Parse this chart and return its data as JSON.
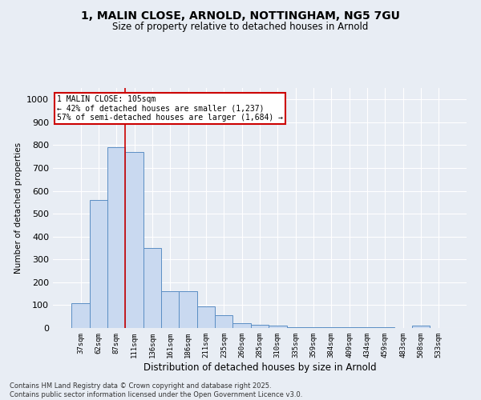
{
  "title_line1": "1, MALIN CLOSE, ARNOLD, NOTTINGHAM, NG5 7GU",
  "title_line2": "Size of property relative to detached houses in Arnold",
  "xlabel": "Distribution of detached houses by size in Arnold",
  "ylabel": "Number of detached properties",
  "categories": [
    "37sqm",
    "62sqm",
    "87sqm",
    "111sqm",
    "136sqm",
    "161sqm",
    "186sqm",
    "211sqm",
    "235sqm",
    "260sqm",
    "285sqm",
    "310sqm",
    "335sqm",
    "359sqm",
    "384sqm",
    "409sqm",
    "434sqm",
    "459sqm",
    "483sqm",
    "508sqm",
    "533sqm"
  ],
  "values": [
    110,
    560,
    790,
    770,
    350,
    160,
    160,
    95,
    55,
    20,
    15,
    10,
    5,
    5,
    3,
    3,
    2,
    2,
    1,
    10,
    1
  ],
  "bar_color": "#c9d9f0",
  "bar_edge_color": "#5b8ec4",
  "background_color": "#e8edf4",
  "grid_color": "#ffffff",
  "red_line_x": 2.5,
  "annotation_text": "1 MALIN CLOSE: 105sqm\n← 42% of detached houses are smaller (1,237)\n57% of semi-detached houses are larger (1,684) →",
  "annotation_box_color": "#ffffff",
  "annotation_border_color": "#cc0000",
  "ylim": [
    0,
    1050
  ],
  "yticks": [
    0,
    100,
    200,
    300,
    400,
    500,
    600,
    700,
    800,
    900,
    1000
  ],
  "footer_line1": "Contains HM Land Registry data © Crown copyright and database right 2025.",
  "footer_line2": "Contains public sector information licensed under the Open Government Licence v3.0."
}
